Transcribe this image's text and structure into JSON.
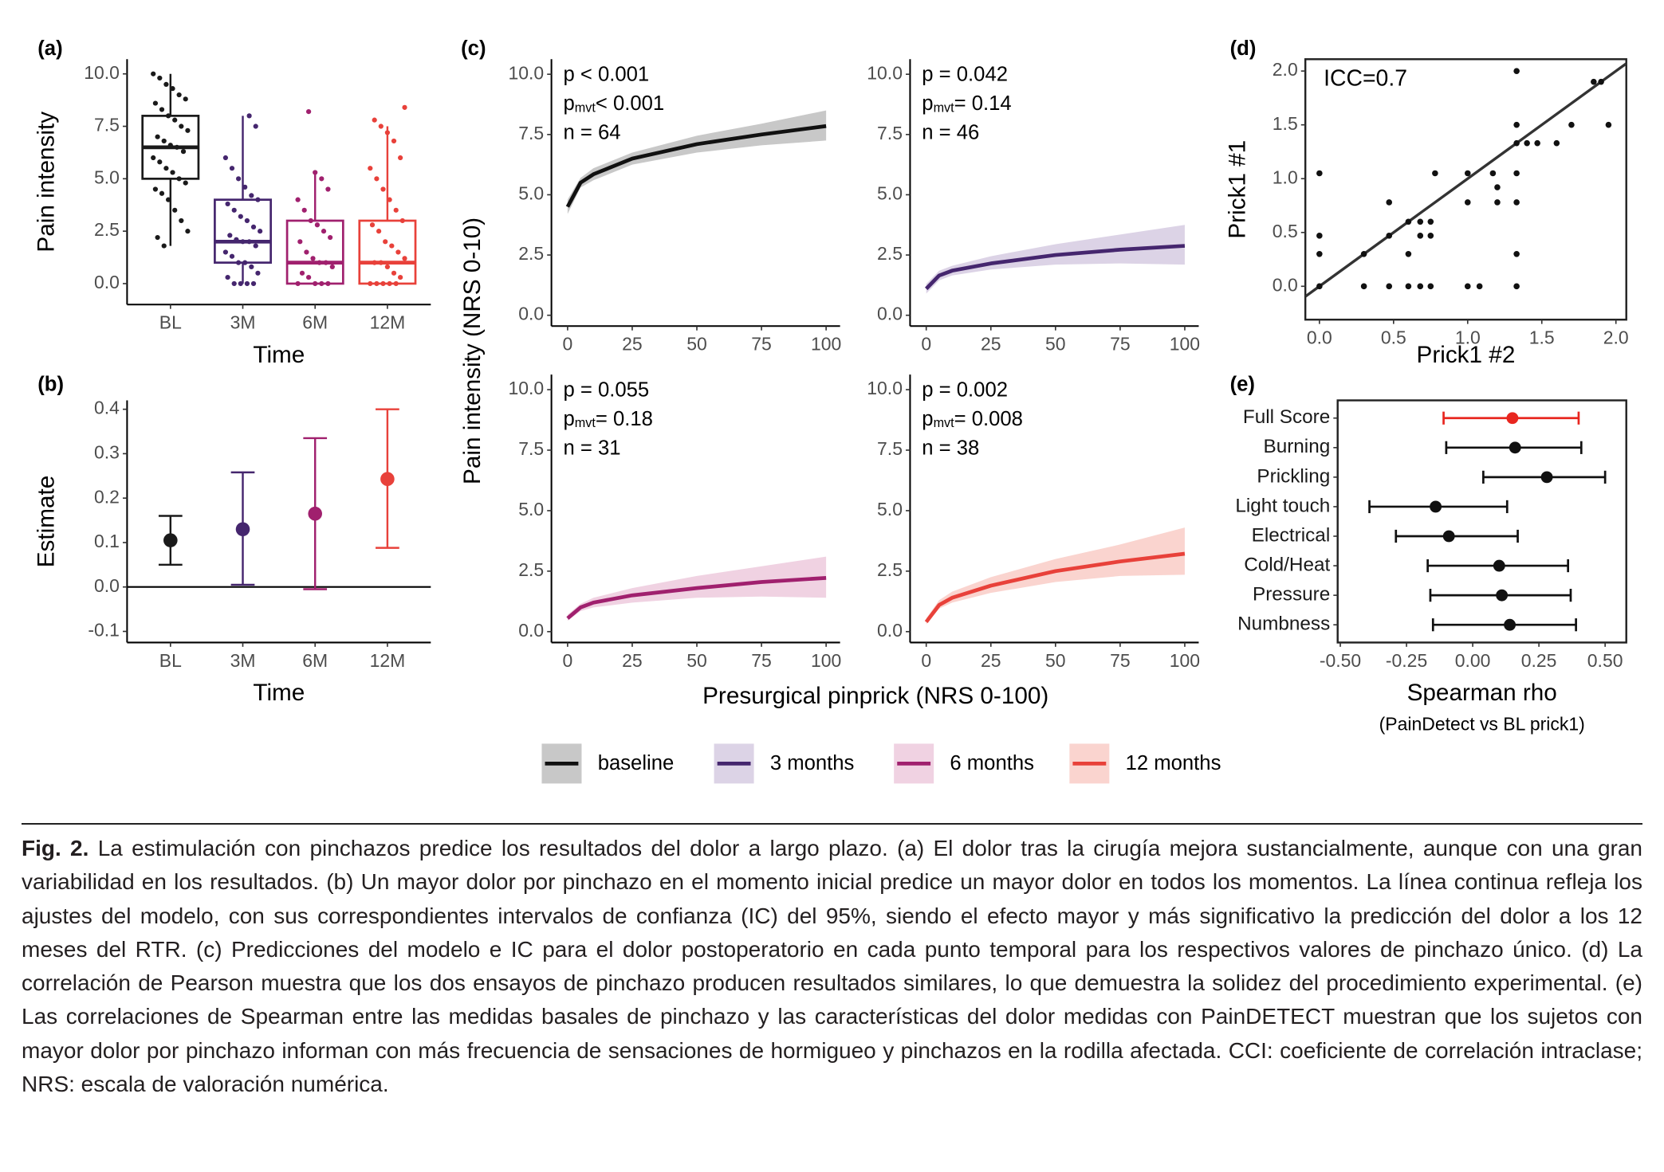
{
  "chart_data": [
    {
      "type": "box",
      "panel_label": "(a)",
      "y_label": "Pain intensity",
      "x_label": "Time",
      "categories": [
        "BL",
        "3M",
        "6M",
        "12M"
      ],
      "ylim": [
        -1,
        10.7
      ],
      "yticks": [
        {
          "value": 0,
          "label": "0.0"
        },
        2.5,
        {
          "value": 5,
          "label": "5.0"
        },
        7.5,
        {
          "value": 10,
          "label": "10.0"
        }
      ],
      "groups": [
        {
          "color": "#1a1a1a",
          "min": 1.8,
          "q1": 5.0,
          "median": 6.5,
          "q3": 8.0,
          "max": 10.0,
          "points": [
            10.0,
            9.8,
            9.5,
            9.3,
            9.0,
            8.8,
            8.6,
            8.3,
            8.0,
            7.8,
            7.5,
            7.3,
            7.0,
            6.8,
            6.6,
            6.5,
            6.3,
            6.0,
            5.8,
            5.5,
            5.3,
            5.0,
            4.8,
            4.5,
            4.3,
            4.0,
            3.5,
            3.0,
            2.5,
            2.2,
            1.8
          ]
        },
        {
          "color": "#45266e",
          "min": 0,
          "q1": 1.0,
          "median": 2.0,
          "q3": 4.0,
          "max": 8.0,
          "points": [
            8.0,
            7.5,
            6.0,
            5.5,
            5.0,
            4.6,
            4.2,
            4.0,
            3.8,
            3.5,
            3.2,
            3.0,
            2.7,
            2.5,
            2.3,
            2.1,
            2.0,
            2.0,
            1.8,
            1.5,
            1.3,
            1.0,
            1.0,
            0.8,
            0.5,
            0.3,
            0,
            0,
            0,
            0
          ]
        },
        {
          "color": "#a0206e",
          "min": 0,
          "q1": 0,
          "median": 1.0,
          "q3": 3.0,
          "max": 5.3,
          "points": [
            8.2,
            5.3,
            5.0,
            4.5,
            4.0,
            3.5,
            3.0,
            2.8,
            2.5,
            2.2,
            2.0,
            1.5,
            1.2,
            1.0,
            1.0,
            0.8,
            0.5,
            0.3,
            0,
            0,
            0,
            0
          ]
        },
        {
          "color": "#e8413a",
          "min": 0,
          "q1": 0,
          "median": 1.0,
          "q3": 3.0,
          "max": 7.5,
          "points": [
            8.4,
            7.8,
            7.5,
            7.2,
            6.8,
            6.0,
            5.5,
            5.0,
            4.5,
            4.0,
            3.5,
            3.0,
            2.8,
            2.5,
            2.0,
            1.8,
            1.5,
            1.2,
            1.0,
            1.0,
            0.8,
            0.5,
            0.3,
            0,
            0,
            0,
            0,
            0
          ]
        }
      ]
    },
    {
      "type": "errorbar",
      "panel_label": "(b)",
      "y_label": "Estimate",
      "x_label": "Time",
      "categories": [
        "BL",
        "3M",
        "6M",
        "12M"
      ],
      "ylim": [
        -0.125,
        0.42
      ],
      "yticks": [
        -0.1,
        {
          "value": 0,
          "label": "0.0"
        },
        0.1,
        0.2,
        0.3,
        0.4
      ],
      "hline": 0,
      "values": [
        0.105,
        0.13,
        0.165,
        0.243
      ],
      "lower": [
        0.05,
        0.005,
        -0.005,
        0.088
      ],
      "upper": [
        0.16,
        0.258,
        0.335,
        0.4
      ],
      "colors": [
        "#1a1a1a",
        "#45266e",
        "#a0206e",
        "#e8413a"
      ]
    },
    {
      "type": "line",
      "panel_label": "(c)",
      "y_label": "Pain intensity (NRS 0-10)",
      "x_label": "Presurgical pinprick (NRS 0-100)",
      "stats": [
        {
          "text": "p < 0.001"
        },
        {
          "main": "p",
          "sub": "mvt",
          "text": "< 0.001"
        },
        {
          "text": "n = 64"
        }
      ],
      "xlim": [
        -6.25,
        105.4
      ],
      "ylim": [
        -0.45,
        10.625
      ],
      "xticks": [
        0,
        25,
        50,
        75,
        100
      ],
      "yticks": [
        {
          "value": 0,
          "label": "0.0"
        },
        2.5,
        {
          "value": 5,
          "label": "5.0"
        },
        7.5,
        {
          "value": 10,
          "label": "10.0"
        }
      ],
      "x": [
        0,
        5,
        10,
        25,
        50,
        75,
        100
      ],
      "series": [
        {
          "name": "baseline",
          "color": "#111111",
          "fill": "#c8c8c8",
          "values": [
            4.5,
            5.5,
            5.85,
            6.5,
            7.1,
            7.5,
            7.85
          ],
          "lower": [
            4.2,
            5.3,
            5.6,
            6.25,
            6.75,
            7.05,
            7.25
          ],
          "upper": [
            4.8,
            5.7,
            6.1,
            6.75,
            7.45,
            7.95,
            8.5
          ]
        }
      ]
    },
    {
      "type": "line",
      "stats": [
        {
          "text": "p = 0.042"
        },
        {
          "main": "p",
          "sub": "mvt",
          "text": "= 0.14"
        },
        {
          "text": "n = 46"
        }
      ],
      "xlim": [
        -6.25,
        105.4
      ],
      "ylim": [
        -0.45,
        10.625
      ],
      "xticks": [
        0,
        25,
        50,
        75,
        100
      ],
      "yticks": [
        {
          "value": 0,
          "label": "0.0"
        },
        2.5,
        {
          "value": 5,
          "label": "5.0"
        },
        7.5,
        {
          "value": 10,
          "label": "10.0"
        }
      ],
      "x": [
        0,
        5,
        10,
        25,
        50,
        75,
        100
      ],
      "series": [
        {
          "name": "3 months",
          "color": "#45266e",
          "fill": "#dcd3e6",
          "values": [
            1.1,
            1.65,
            1.85,
            2.15,
            2.5,
            2.72,
            2.88
          ],
          "lower": [
            0.9,
            1.45,
            1.65,
            1.9,
            2.1,
            2.15,
            2.1
          ],
          "upper": [
            1.3,
            1.85,
            2.05,
            2.45,
            2.95,
            3.35,
            3.75
          ]
        }
      ]
    },
    {
      "type": "line",
      "stats": [
        {
          "text": "p = 0.055"
        },
        {
          "main": "p",
          "sub": "mvt",
          "text": "= 0.18"
        },
        {
          "text": "n = 31"
        }
      ],
      "xlim": [
        -6.25,
        105.4
      ],
      "ylim": [
        -0.45,
        10.625
      ],
      "xticks": [
        0,
        25,
        50,
        75,
        100
      ],
      "yticks": [
        {
          "value": 0,
          "label": "0.0"
        },
        2.5,
        {
          "value": 5,
          "label": "5.0"
        },
        7.5,
        {
          "value": 10,
          "label": "10.0"
        }
      ],
      "x": [
        0,
        5,
        10,
        25,
        50,
        75,
        100
      ],
      "series": [
        {
          "name": "6 months",
          "color": "#a0206e",
          "fill": "#f0d2e2",
          "values": [
            0.55,
            1.0,
            1.2,
            1.5,
            1.8,
            2.05,
            2.22
          ],
          "lower": [
            0.45,
            0.85,
            1.0,
            1.2,
            1.4,
            1.45,
            1.4
          ],
          "upper": [
            0.7,
            1.15,
            1.4,
            1.8,
            2.3,
            2.7,
            3.1
          ]
        }
      ]
    },
    {
      "type": "line",
      "stats": [
        {
          "text": "p = 0.002"
        },
        {
          "main": "p",
          "sub": "mvt",
          "text": "= 0.008"
        },
        {
          "text": "n = 38"
        }
      ],
      "xlim": [
        -6.25,
        105.4
      ],
      "ylim": [
        -0.45,
        10.625
      ],
      "xticks": [
        0,
        25,
        50,
        75,
        100
      ],
      "yticks": [
        {
          "value": 0,
          "label": "0.0"
        },
        2.5,
        {
          "value": 5,
          "label": "5.0"
        },
        7.5,
        {
          "value": 10,
          "label": "10.0"
        }
      ],
      "x": [
        0,
        5,
        10,
        25,
        50,
        75,
        100
      ],
      "series": [
        {
          "name": "12 months",
          "color": "#e8413a",
          "fill": "#fad4cf",
          "values": [
            0.4,
            1.1,
            1.4,
            1.9,
            2.5,
            2.9,
            3.22
          ],
          "lower": [
            0.3,
            0.95,
            1.2,
            1.6,
            2.05,
            2.3,
            2.35
          ],
          "upper": [
            0.55,
            1.3,
            1.65,
            2.25,
            3.0,
            3.6,
            4.3
          ]
        }
      ]
    },
    {
      "type": "scatter",
      "panel_label": "(d)",
      "annotation": "ICC=0.7",
      "y_label": "Prick1 #1",
      "x_label": "Prick1 #2",
      "border": true,
      "color": "#111111",
      "xlim": [
        -0.095,
        2.07
      ],
      "ylim": [
        -0.31,
        2.11
      ],
      "xticks": [
        {
          "value": 0,
          "label": "0.0"
        },
        0.5,
        {
          "value": 1,
          "label": "1.0"
        },
        1.5,
        {
          "value": 2,
          "label": "2.0"
        }
      ],
      "yticks": [
        {
          "value": 0,
          "label": "0.0"
        },
        0.5,
        {
          "value": 1,
          "label": "1.0"
        },
        1.5,
        {
          "value": 2,
          "label": "2.0"
        }
      ],
      "fit": {
        "intercept": 0.0,
        "slope": 1.0
      },
      "x": [
        0,
        0,
        0,
        0,
        0.3,
        0.3,
        0.47,
        0.47,
        0.47,
        0.6,
        0.6,
        0.6,
        0.68,
        0.68,
        0.68,
        0.75,
        0.75,
        0.75,
        0.78,
        1.0,
        1.0,
        1.0,
        1.08,
        1.17,
        1.2,
        1.2,
        1.33,
        1.33,
        1.33,
        1.33,
        1.33,
        1.33,
        1.33,
        1.4,
        1.47,
        1.6,
        1.7,
        1.85,
        1.9,
        1.95
      ],
      "y": [
        1.05,
        0.47,
        0.3,
        0,
        0.3,
        0,
        0.78,
        0.47,
        0,
        0.6,
        0.3,
        0,
        0.47,
        0.6,
        0,
        0.47,
        0.6,
        0,
        1.05,
        1.05,
        0.78,
        0,
        0,
        1.05,
        0.92,
        0.78,
        2.0,
        1.5,
        1.33,
        1.05,
        0.78,
        0.3,
        0,
        1.33,
        1.33,
        1.33,
        1.5,
        1.9,
        1.9,
        1.5
      ]
    },
    {
      "type": "forest",
      "panel_label": "(e)",
      "x_label": "Spearman rho",
      "x_sublabel": "(PainDetect vs BL prick1)",
      "border": true,
      "categories": [
        "Full Score",
        "Burning",
        "Prickling",
        "Light touch",
        "Electrical",
        "Cold/Heat",
        "Pressure",
        "Numbness"
      ],
      "xlim": [
        -0.51,
        0.58
      ],
      "xticks": [
        {
          "value": -0.5,
          "label": "-0.50"
        },
        -0.25,
        {
          "value": 0,
          "label": "0.00"
        },
        0.25,
        {
          "value": 0.5,
          "label": "0.50"
        }
      ],
      "values": [
        0.15,
        0.16,
        0.28,
        -0.14,
        -0.09,
        0.1,
        0.11,
        0.14
      ],
      "lower": [
        -0.11,
        -0.1,
        0.04,
        -0.39,
        -0.29,
        -0.17,
        -0.16,
        -0.15
      ],
      "upper": [
        0.4,
        0.41,
        0.5,
        0.13,
        0.17,
        0.36,
        0.37,
        0.39
      ],
      "colors": [
        "#e8261f",
        "#111111",
        "#111111",
        "#111111",
        "#111111",
        "#111111",
        "#111111",
        "#111111"
      ]
    }
  ],
  "caption": {
    "label": "Fig. 2.",
    "text": "La estimulación con pinchazos predice los resultados del dolor a largo plazo. (a) El dolor tras la cirugía mejora sustancialmente, aunque con una gran variabilidad en los resultados. (b) Un mayor dolor por pinchazo en el momento inicial predice un mayor dolor en todos los momentos. La línea continua refleja los ajustes del modelo, con sus correspondientes intervalos de confianza (IC) del 95%, siendo el efecto mayor y más significativo la predicción del dolor a los 12 meses del RTR. (c) Predicciones del modelo e IC para el dolor postoperatorio en cada punto temporal para los respectivos valores de pinchazo único. (d) La correlación de Pearson muestra que los dos ensayos de pinchazo producen resultados similares, lo que demuestra la solidez del procedimiento experimental. (e) Las correlaciones de Spearman entre las medidas basales de pinchazo y las características del dolor medidas con PainDETECT muestran que los sujetos con mayor dolor por pinchazo informan con más frecuencia de sensaciones de hormigueo y pinchazos en la rodilla afectada. CCI: coeficiente de correlación intraclase; NRS: escala de valoración numérica."
  }
}
